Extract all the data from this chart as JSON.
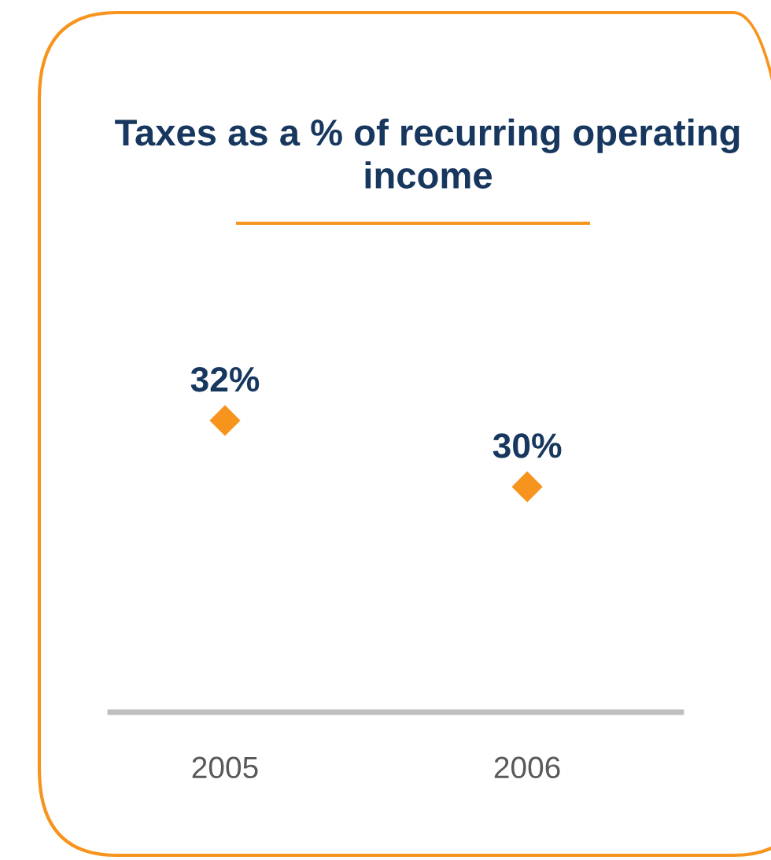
{
  "chart_data": {
    "type": "scatter",
    "title": "Taxes as a % of recurring operating income",
    "categories": [
      "2005",
      "2006"
    ],
    "series": [
      {
        "color": "#f7941d",
        "values": [
          32,
          30
        ],
        "value_labels": [
          "32%",
          "30%"
        ]
      }
    ],
    "marker": "diamond",
    "grid": false,
    "tick_labels": "x"
  }
}
